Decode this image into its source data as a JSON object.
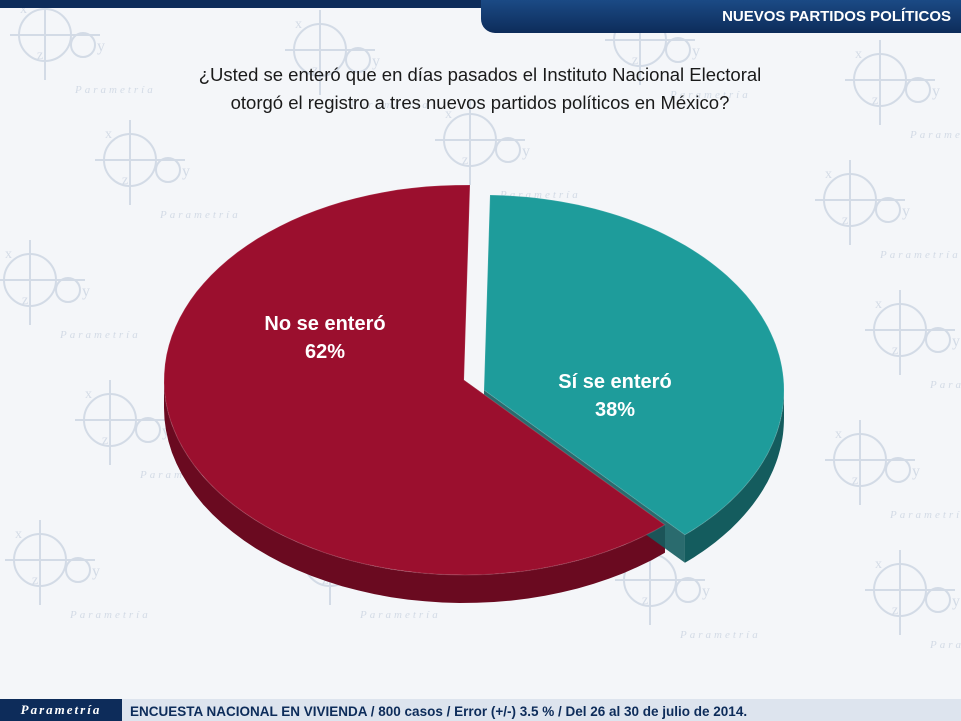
{
  "header": {
    "section_title": "NUEVOS PARTIDOS POLÍTICOS"
  },
  "question": {
    "line1": "¿Usted se enteró que en días pasados el Instituto Nacional Electoral",
    "line2": "otorgó el registro a tres nuevos partidos políticos en México?"
  },
  "chart_data": {
    "type": "pie",
    "slices": [
      {
        "label": "No se enteró",
        "value": 62,
        "value_label": "62%",
        "color": "#9b0f2e",
        "side_color": "#6a0a20"
      },
      {
        "label": "Sí se enteró",
        "value": 38,
        "value_label": "38%",
        "color": "#1e9c9b",
        "side_color": "#145c5e"
      }
    ]
  },
  "footer": {
    "logo_text": "Parametría",
    "survey_info": "ENCUESTA NACIONAL EN VIVIENDA / 800 casos / Error (+/-) 3.5 % / Del 26 al 30 de julio de 2014."
  },
  "watermark": {
    "text": "Parametría",
    "letters": [
      "x",
      "y",
      "z"
    ]
  }
}
